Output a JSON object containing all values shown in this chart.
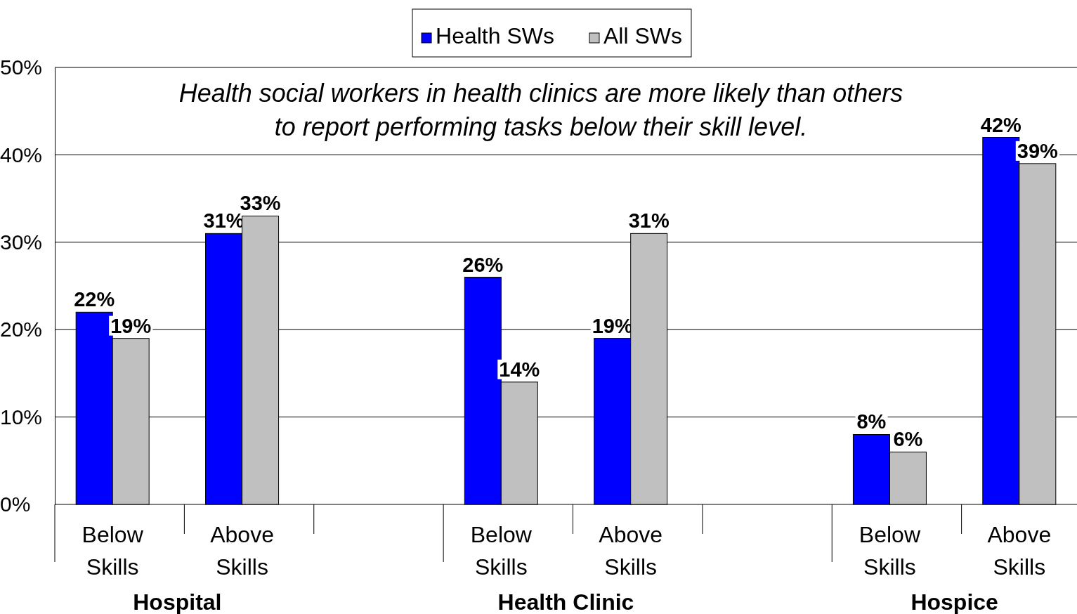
{
  "chart_data": {
    "type": "bar",
    "categories": [
      "Below Skills",
      "Above Skills",
      null,
      "Below Skills",
      "Above Skills",
      null,
      "Below Skills",
      "Above Skills"
    ],
    "series": [
      {
        "name": "Health SWs",
        "color": "#0000ff",
        "values": [
          22,
          31,
          null,
          26,
          19,
          null,
          8,
          42
        ],
        "value_labels": [
          "22%",
          "31%",
          null,
          "26%",
          "19%",
          null,
          "8%",
          "42%"
        ]
      },
      {
        "name": "All SWs",
        "color": "#c0c0c0",
        "values": [
          19,
          33,
          null,
          14,
          31,
          null,
          6,
          39
        ],
        "value_labels": [
          "19%",
          "33%",
          null,
          "14%",
          "31%",
          null,
          "6%",
          "39%"
        ]
      }
    ],
    "ylim": [
      0,
      50
    ],
    "yticks": [
      {
        "value": 0,
        "label": "0%"
      },
      {
        "value": 10,
        "label": "10%"
      },
      {
        "value": 20,
        "label": "20%"
      },
      {
        "value": 30,
        "label": "30%"
      },
      {
        "value": 40,
        "label": "40%"
      },
      {
        "value": 50,
        "label": "50%"
      }
    ],
    "grid": "y",
    "legend": "top",
    "annotations": [
      "Health social workers in health clinics are more likely than others to report performing tasks below their skill level.",
      "Hospital",
      "Health Clinic",
      "Hospice"
    ]
  }
}
